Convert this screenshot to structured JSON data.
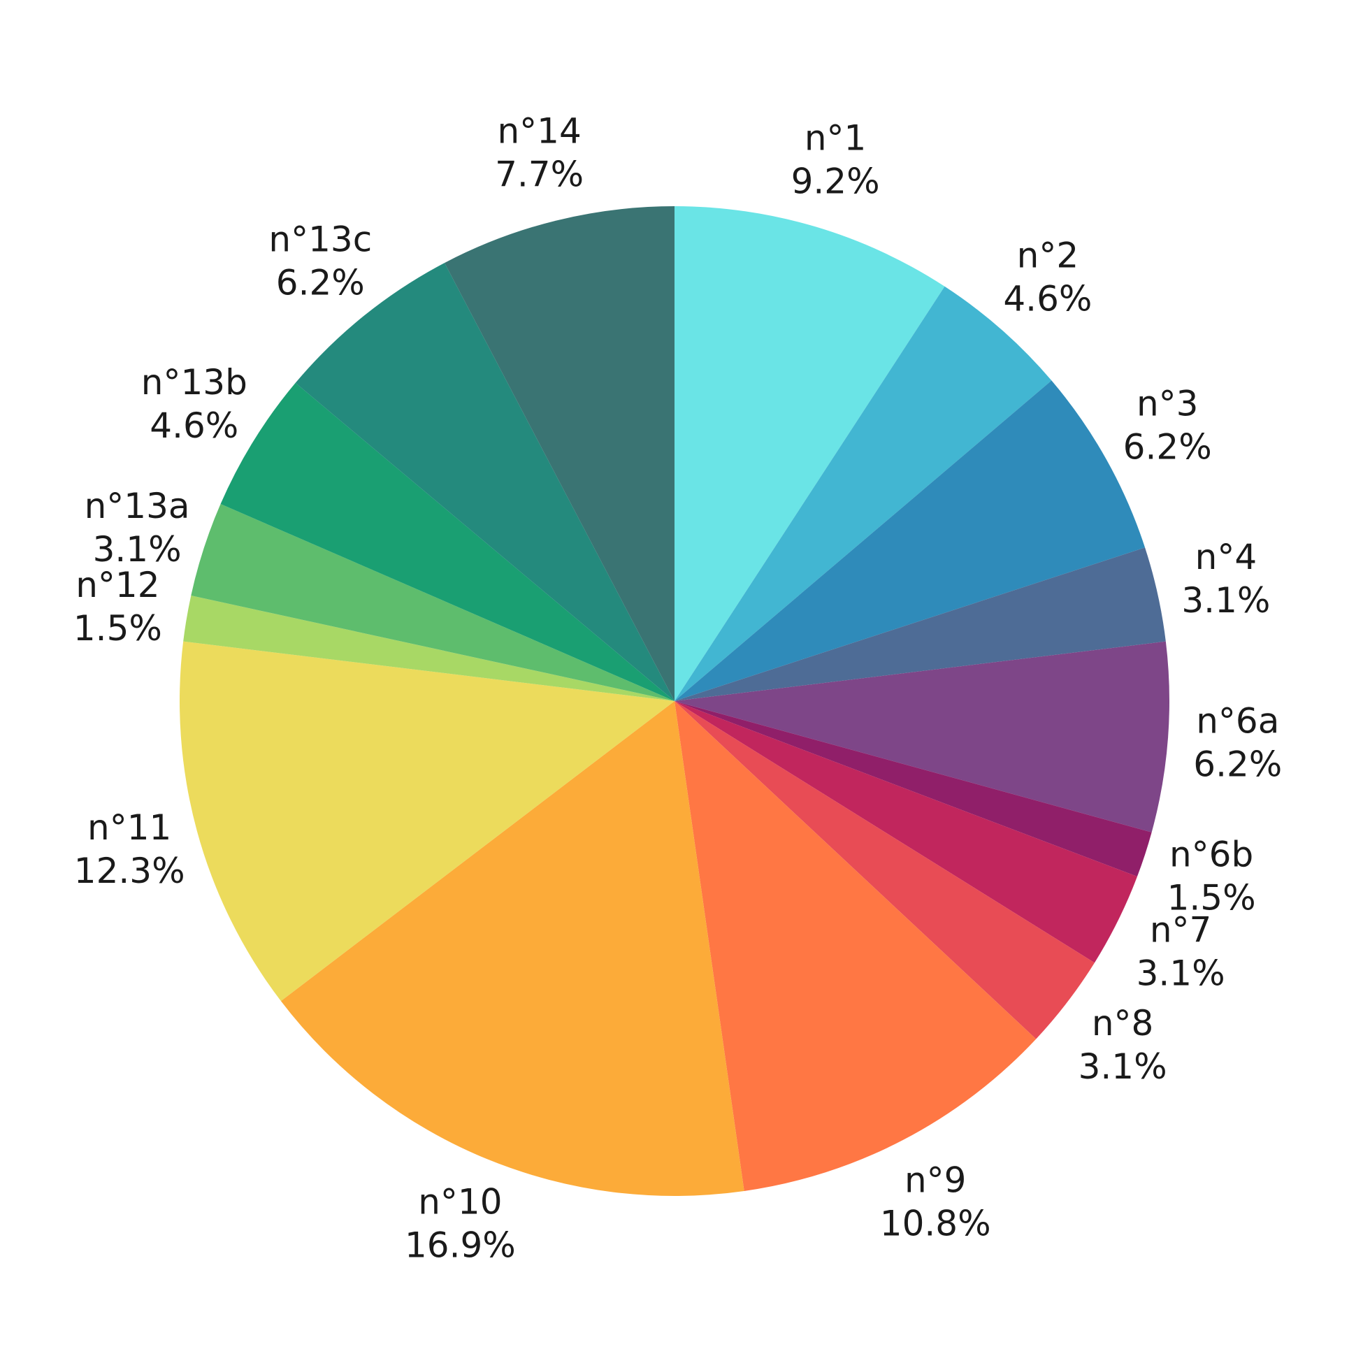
{
  "chart_data": {
    "type": "pie",
    "start_angle_deg": 90,
    "direction": "clockwise",
    "slices": [
      {
        "label": "n°1",
        "pct_label": "9.2%",
        "value": 9.2,
        "color": "#6ae4e6"
      },
      {
        "label": "n°2",
        "pct_label": "4.6%",
        "value": 4.6,
        "color": "#42b6d2"
      },
      {
        "label": "n°3",
        "pct_label": "6.2%",
        "value": 6.2,
        "color": "#2f8bba"
      },
      {
        "label": "n°4",
        "pct_label": "3.1%",
        "value": 3.1,
        "color": "#4e6c96"
      },
      {
        "label": "n°6a",
        "pct_label": "6.2%",
        "value": 6.2,
        "color": "#7e4688"
      },
      {
        "label": "n°6b",
        "pct_label": "1.5%",
        "value": 1.5,
        "color": "#901f69"
      },
      {
        "label": "n°7",
        "pct_label": "3.1%",
        "value": 3.1,
        "color": "#c1265d"
      },
      {
        "label": "n°8",
        "pct_label": "3.1%",
        "value": 3.1,
        "color": "#e84c55"
      },
      {
        "label": "n°9",
        "pct_label": "10.8%",
        "value": 10.8,
        "color": "#ff7744"
      },
      {
        "label": "n°10",
        "pct_label": "16.9%",
        "value": 16.9,
        "color": "#fcab39"
      },
      {
        "label": "n°11",
        "pct_label": "12.3%",
        "value": 12.3,
        "color": "#ecdb5c"
      },
      {
        "label": "n°12",
        "pct_label": "1.5%",
        "value": 1.5,
        "color": "#a8d865"
      },
      {
        "label": "n°13a",
        "pct_label": "3.1%",
        "value": 3.1,
        "color": "#5ebd6d"
      },
      {
        "label": "n°13b",
        "pct_label": "4.6%",
        "value": 4.6,
        "color": "#1a9f72"
      },
      {
        "label": "n°13c",
        "pct_label": "6.2%",
        "value": 6.2,
        "color": "#248a7d"
      },
      {
        "label": "n°14",
        "pct_label": "7.7%",
        "value": 7.7,
        "color": "#3a7473"
      }
    ]
  }
}
